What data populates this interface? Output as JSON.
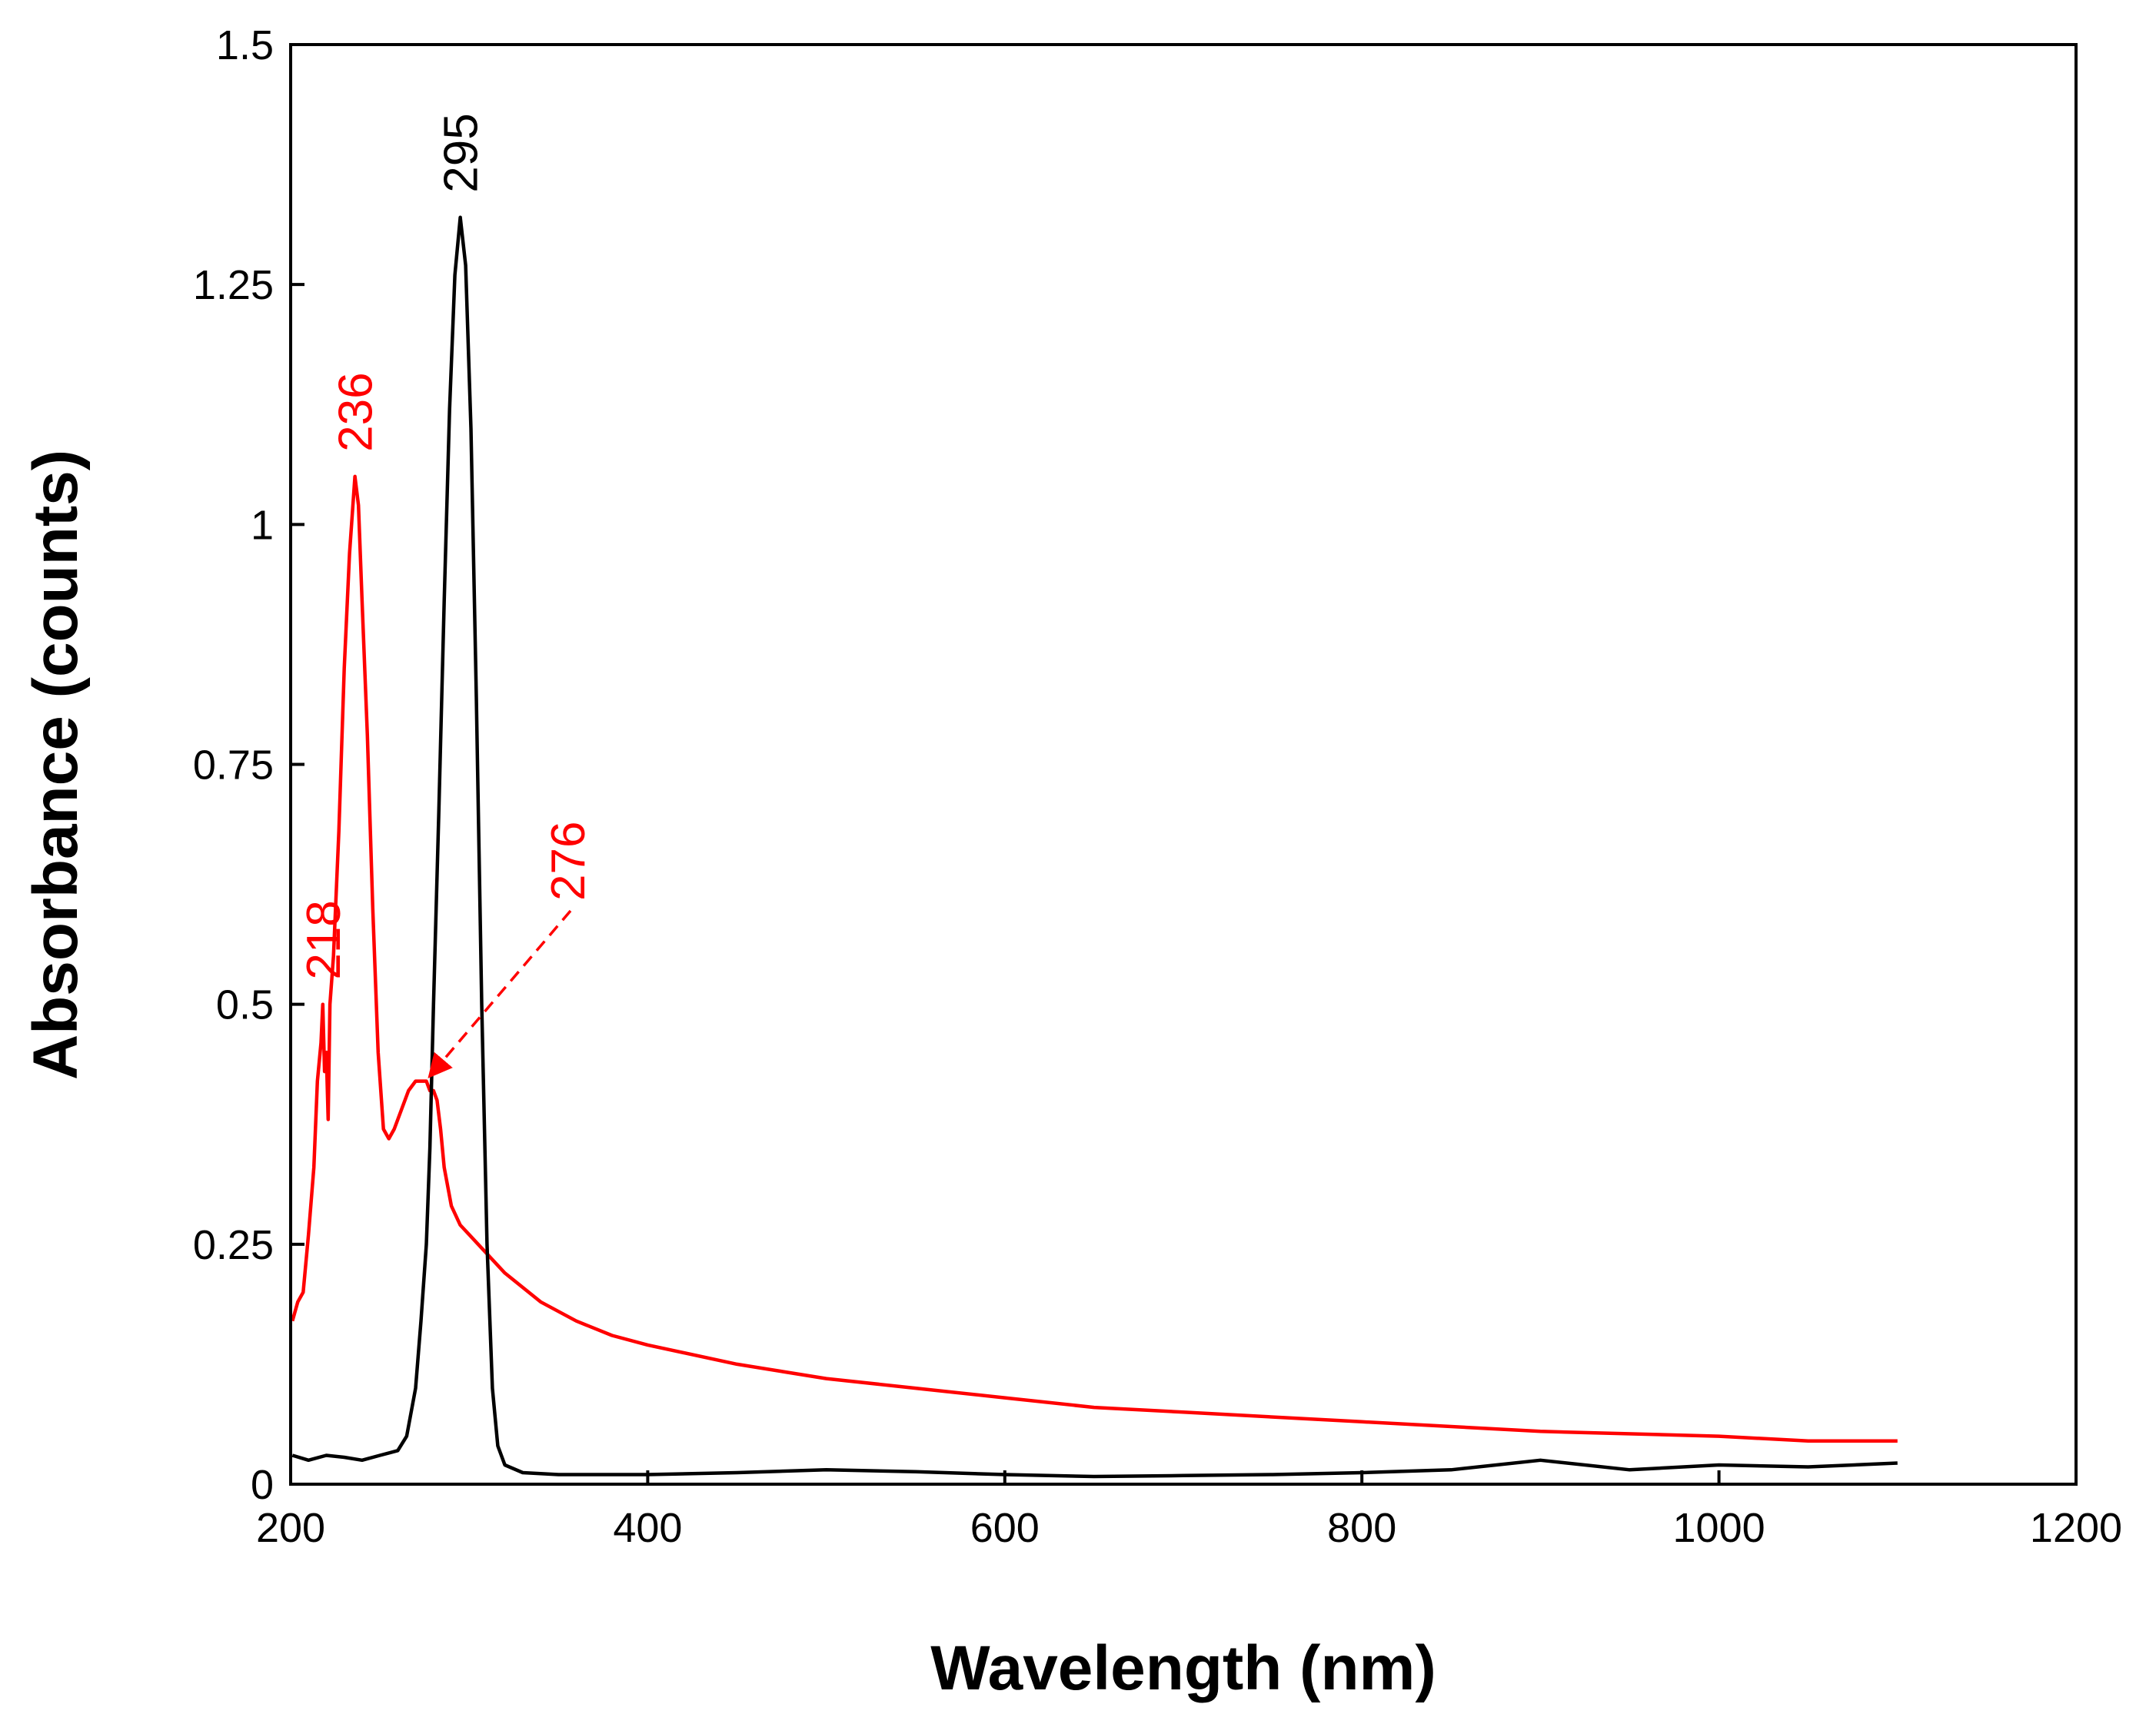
{
  "chart_data": {
    "type": "line",
    "title": "",
    "xlabel": "Wavelength (nm)",
    "ylabel": "Absorbance (counts)",
    "xlim": [
      200,
      1200
    ],
    "ylim": [
      0,
      1.5
    ],
    "x_ticks": [
      200,
      400,
      600,
      800,
      1000,
      1200
    ],
    "x_tick_labels": [
      "200",
      "400",
      "600",
      "800",
      "1000",
      "1200"
    ],
    "y_ticks": [
      0,
      0.25,
      0.5,
      0.75,
      1,
      1.25,
      1.5
    ],
    "y_tick_labels": [
      "0",
      "0.25",
      "0.5",
      "0.75",
      "1",
      "1.25",
      "1.5"
    ],
    "grid": false,
    "legend": null,
    "colors": {
      "red_series": "#ff0000",
      "black_series": "#000000"
    },
    "series": [
      {
        "name": "red",
        "color": "#ff0000",
        "x": [
          201,
          204,
          207,
          210,
          213,
          215,
          217,
          218,
          219,
          220,
          221,
          222,
          224,
          227,
          230,
          233,
          236,
          238,
          240,
          243,
          246,
          249,
          252,
          255,
          258,
          262,
          266,
          270,
          273,
          276,
          278,
          280,
          282,
          284,
          286,
          290,
          295,
          300,
          310,
          320,
          340,
          360,
          380,
          400,
          450,
          500,
          550,
          600,
          650,
          700,
          800,
          900,
          1000,
          1050,
          1100
        ],
        "y": [
          0.17,
          0.19,
          0.2,
          0.26,
          0.33,
          0.42,
          0.46,
          0.5,
          0.43,
          0.45,
          0.38,
          0.5,
          0.55,
          0.68,
          0.85,
          0.97,
          1.05,
          1.02,
          0.92,
          0.78,
          0.6,
          0.45,
          0.37,
          0.36,
          0.37,
          0.39,
          0.41,
          0.42,
          0.42,
          0.42,
          0.41,
          0.41,
          0.4,
          0.37,
          0.33,
          0.29,
          0.27,
          0.26,
          0.24,
          0.22,
          0.19,
          0.17,
          0.155,
          0.145,
          0.125,
          0.11,
          0.1,
          0.09,
          0.08,
          0.075,
          0.065,
          0.055,
          0.05,
          0.045,
          0.045
        ]
      },
      {
        "name": "black",
        "color": "#000000",
        "x": [
          201,
          210,
          220,
          230,
          240,
          250,
          260,
          265,
          270,
          273,
          276,
          278,
          280,
          283,
          286,
          289,
          292,
          295,
          298,
          301,
          304,
          307,
          310,
          313,
          316,
          320,
          330,
          350,
          400,
          450,
          500,
          550,
          600,
          650,
          700,
          750,
          800,
          850,
          900,
          950,
          1000,
          1050,
          1100
        ],
        "y": [
          0.03,
          0.025,
          0.03,
          0.028,
          0.025,
          0.03,
          0.035,
          0.05,
          0.1,
          0.17,
          0.25,
          0.35,
          0.5,
          0.7,
          0.92,
          1.12,
          1.26,
          1.32,
          1.27,
          1.1,
          0.82,
          0.5,
          0.25,
          0.1,
          0.04,
          0.02,
          0.012,
          0.01,
          0.01,
          0.012,
          0.015,
          0.013,
          0.01,
          0.008,
          0.009,
          0.01,
          0.012,
          0.015,
          0.025,
          0.015,
          0.02,
          0.018,
          0.022
        ]
      }
    ],
    "annotations": [
      {
        "text": "218",
        "x": 218,
        "y": 0.5,
        "color": "#ff0000",
        "rotation": -90
      },
      {
        "text": "236",
        "x": 236,
        "y": 1.05,
        "color": "#ff0000",
        "rotation": -90
      },
      {
        "text": "276",
        "x": 276,
        "y": 0.42,
        "color": "#ff0000",
        "rotation": -90,
        "arrow": true
      },
      {
        "text": "295",
        "x": 295,
        "y": 1.32,
        "color": "#000000",
        "rotation": -90
      }
    ]
  }
}
